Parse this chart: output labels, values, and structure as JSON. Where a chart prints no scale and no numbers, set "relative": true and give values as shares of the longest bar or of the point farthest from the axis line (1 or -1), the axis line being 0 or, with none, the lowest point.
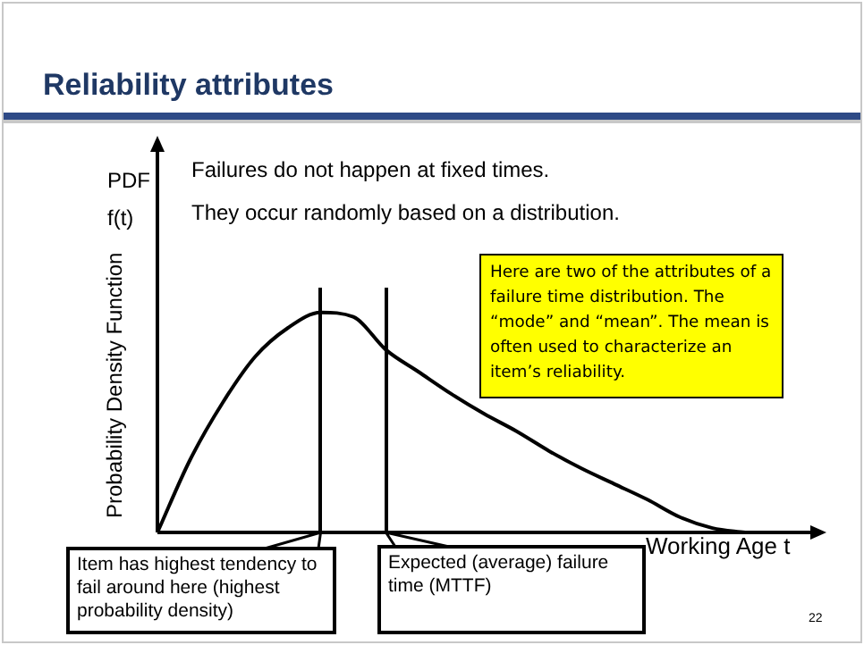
{
  "chart_data": {
    "type": "line",
    "title": "Reliability attributes",
    "xlabel": "Working Age t",
    "ylabel": "Probability Density Function",
    "annotations": [
      "PDF",
      "f(t)",
      "Failures do not happen at fixed times.",
      "They occur randomly based on a distribution.",
      "Here are two of the attributes of a failure time distribution. The “mode” and “mean”. The mean is often used to characterize an item’s reliability.",
      "22",
      "Item has highest tendency to fail around here (highest probability density)",
      "Expected (average) failure time (MTTF)"
    ],
    "categories": [
      null,
      null,
      null,
      null,
      null,
      null,
      null,
      null,
      null,
      null,
      null,
      null,
      null,
      null,
      null,
      null,
      null,
      null,
      null,
      null,
      null
    ],
    "values": [
      0,
      0.33,
      0.59,
      0.8,
      0.93,
      1,
      0.98,
      0.83,
      0.73,
      0.63,
      0.54,
      0.46,
      0.37,
      0.29,
      0.22,
      0.15,
      0.07,
      0.02,
      0,
      null,
      null
    ],
    "color": "#000000",
    "relative": true,
    "marker": "none",
    "legend": false
  }
}
